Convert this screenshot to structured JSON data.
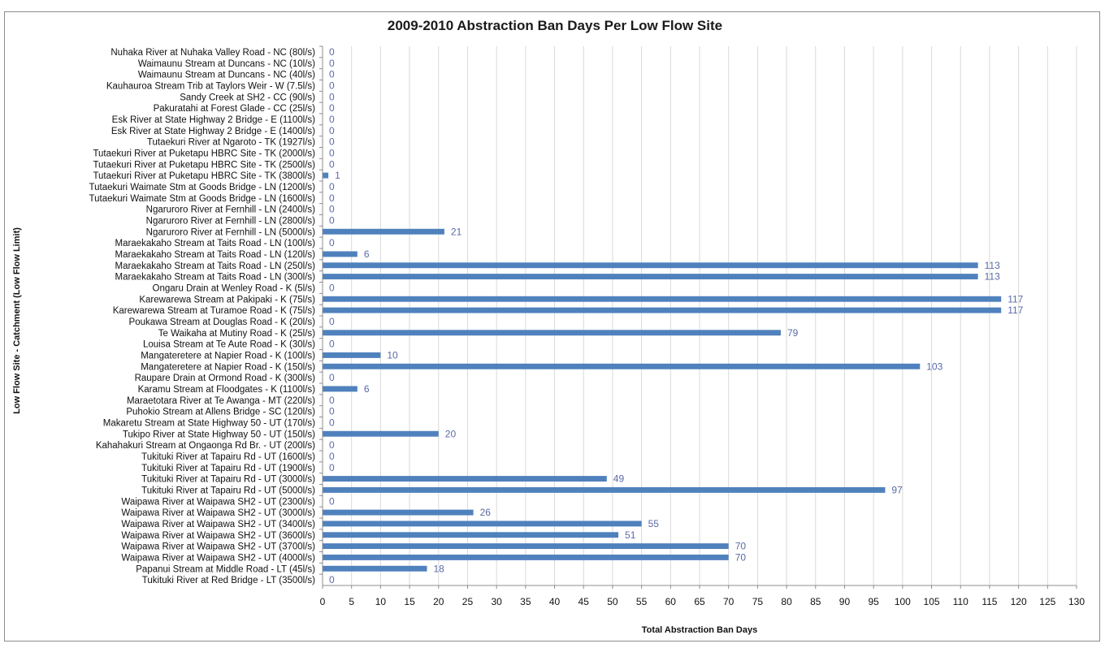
{
  "chart_data": {
    "type": "bar",
    "orientation": "horizontal",
    "title": "2009-2010 Abstraction Ban Days Per Low Flow Site",
    "xlabel": "Total Abstraction Ban Days",
    "ylabel": "Low Flow Site - Catchment (Low Flow Limit)",
    "xlim": [
      0,
      130
    ],
    "xticks": [
      0,
      5,
      10,
      15,
      20,
      25,
      30,
      35,
      40,
      45,
      50,
      55,
      60,
      65,
      70,
      75,
      80,
      85,
      90,
      95,
      100,
      105,
      110,
      115,
      120,
      125,
      130
    ],
    "grid": true,
    "bar_color": "#4f81bd",
    "label_color": "#5a6aa6",
    "categories": [
      "Nuhaka River at Nuhaka Valley Road - NC (80l/s)",
      "Waimaunu Stream at Duncans - NC (10l/s)",
      "Waimaunu Stream at Duncans - NC (40l/s)",
      "Kauhauroa Stream Trib  at Taylors Weir - W (7.5l/s)",
      "Sandy Creek at SH2 - CC (90l/s)",
      "Pakuratahi at Forest Glade - CC (25l/s)",
      "Esk River at State Highway 2 Bridge - E (1100l/s)",
      "Esk River at State Highway 2 Bridge - E (1400l/s)",
      "Tutaekuri River at Ngaroto - TK (1927l/s)",
      "Tutaekuri River at Puketapu HBRC Site - TK (2000l/s)",
      "Tutaekuri River at Puketapu HBRC Site - TK (2500l/s)",
      "Tutaekuri River at Puketapu HBRC Site - TK (3800l/s)",
      "Tutaekuri Waimate Stm at Goods Bridge - LN (1200l/s)",
      "Tutaekuri Waimate Stm at Goods Bridge - LN (1600l/s)",
      "Ngaruroro River at Fernhill - LN (2400l/s)",
      "Ngaruroro River at Fernhill - LN (2800l/s)",
      "Ngaruroro River at Fernhill - LN (5000l/s)",
      "Maraekakaho Stream at Taits Road - LN (100l/s)",
      "Maraekakaho Stream at Taits Road - LN (120l/s)",
      "Maraekakaho Stream at Taits Road - LN (250l/s)",
      "Maraekakaho Stream at Taits Road - LN (300l/s)",
      "Ongaru Drain at Wenley Road - K (5l/s)",
      "Karewarewa Stream at Pakipaki - K (75l/s)",
      "Karewarewa Stream at Turamoe Road - K (75l/s)",
      "Poukawa Stream at Douglas Road - K (20l/s)",
      "Te Waikaha at Mutiny Road - K (25l/s)",
      "Louisa Stream at Te Aute Road - K (30l/s)",
      "Mangateretere at Napier Road - K (100l/s)",
      "Mangateretere at Napier Road - K (150l/s)",
      "Raupare Drain at Ormond Road - K (300l/s)",
      "Karamu Stream at Floodgates - K (1100l/s)",
      "Maraetotara River at Te Awanga - MT (220l/s)",
      "Puhokio Stream at Allens Bridge - SC (120l/s)",
      "Makaretu Stream at State Highway 50 - UT (170l/s)",
      "Tukipo River at State Highway 50 - UT (150l/s)",
      "Kahahakuri Stream at Ongaonga Rd Br. - UT (200l/s)",
      "Tukituki River at Tapairu Rd - UT (1600l/s)",
      "Tukituki River at Tapairu Rd - UT (1900l/s)",
      "Tukituki River at Tapairu Rd - UT (3000l/s)",
      "Tukituki River at Tapairu Rd - UT (5000l/s)",
      "Waipawa River at Waipawa SH2 - UT (2300l/s)",
      "Waipawa River at Waipawa SH2 - UT (3000l/s)",
      "Waipawa River at Waipawa SH2 - UT (3400l/s)",
      "Waipawa River at Waipawa SH2 - UT (3600l/s)",
      "Waipawa River at Waipawa SH2 - UT (3700l/s)",
      "Waipawa River at Waipawa SH2 - UT (4000l/s)",
      "Papanui Stream at Middle Road - LT (45l/s)",
      "Tukituki River at Red Bridge - LT (3500l/s)"
    ],
    "values": [
      0,
      0,
      0,
      0,
      0,
      0,
      0,
      0,
      0,
      0,
      0,
      1,
      0,
      0,
      0,
      0,
      21,
      0,
      6,
      113,
      113,
      0,
      117,
      117,
      0,
      79,
      0,
      10,
      103,
      0,
      6,
      0,
      0,
      0,
      20,
      0,
      0,
      0,
      49,
      97,
      0,
      26,
      55,
      51,
      70,
      70,
      18,
      0
    ]
  }
}
